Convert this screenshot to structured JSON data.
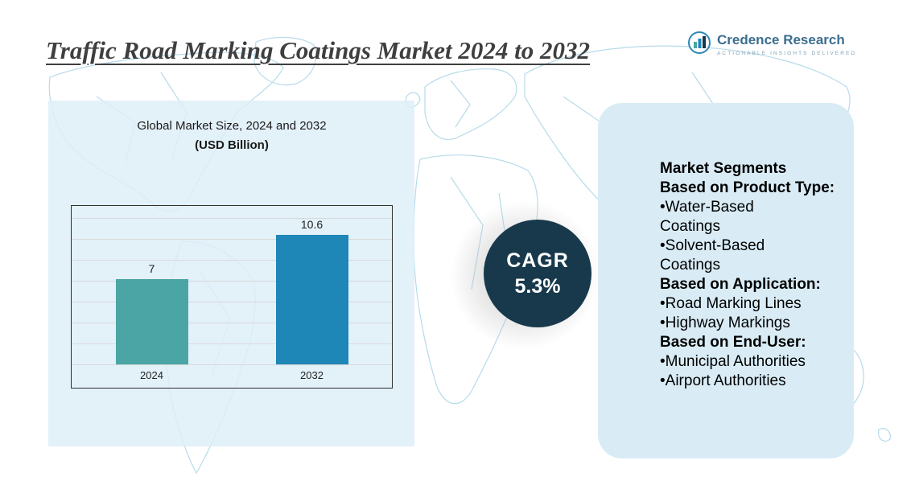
{
  "header": {
    "title": "Traffic Road Marking Coatings Market 2024 to 2032"
  },
  "logo": {
    "brand": "Credence Research",
    "tagline": "ACTIONABLE INSIGHTS DELIVERED"
  },
  "chart": {
    "title": "Global Market Size, 2024 and 2032",
    "subtitle": "(USD Billion)"
  },
  "chart_data": {
    "type": "bar",
    "title": "Global Market Size, 2024 and 2032",
    "xlabel": "",
    "ylabel": "USD Billion",
    "categories": [
      "2024",
      "2032"
    ],
    "values": [
      7,
      10.6
    ],
    "bar_colors": [
      "#4BA5A5",
      "#1F86B8"
    ],
    "ylim": [
      0,
      13
    ],
    "grid": true,
    "legend_position": "none"
  },
  "cagr": {
    "label": "CAGR",
    "value": "5.3%"
  },
  "segments": {
    "items": [
      {
        "bold": true,
        "lines": [
          "Market Segments"
        ]
      },
      {
        "bold": true,
        "lines": [
          "Based on Product Type:"
        ]
      },
      {
        "bold": false,
        "lines": [
          "•Water-Based",
          "Coatings"
        ]
      },
      {
        "bold": false,
        "lines": [
          "•Solvent-Based",
          "Coatings"
        ]
      },
      {
        "bold": true,
        "lines": [
          "Based on Application:"
        ]
      },
      {
        "bold": false,
        "lines": [
          "•Road Marking Lines"
        ]
      },
      {
        "bold": false,
        "lines": [
          "•Highway Markings"
        ]
      },
      {
        "bold": true,
        "lines": [
          "Based on End-User:"
        ]
      },
      {
        "bold": false,
        "lines": [
          "•Municipal Authorities"
        ]
      },
      {
        "bold": false,
        "lines": [
          "•Airport Authorities"
        ]
      }
    ]
  },
  "colors": {
    "bar_2024": "#4BA5A5",
    "bar_2032": "#1F86B8",
    "cagr_circle": "#17394B",
    "left_panel_bg": "#DEEEF8",
    "right_panel_bg": "#D9ECF6",
    "map_line": "#B7DBEA",
    "title_text": "#3F3F3F",
    "brand_text": "#3C6E8F"
  }
}
